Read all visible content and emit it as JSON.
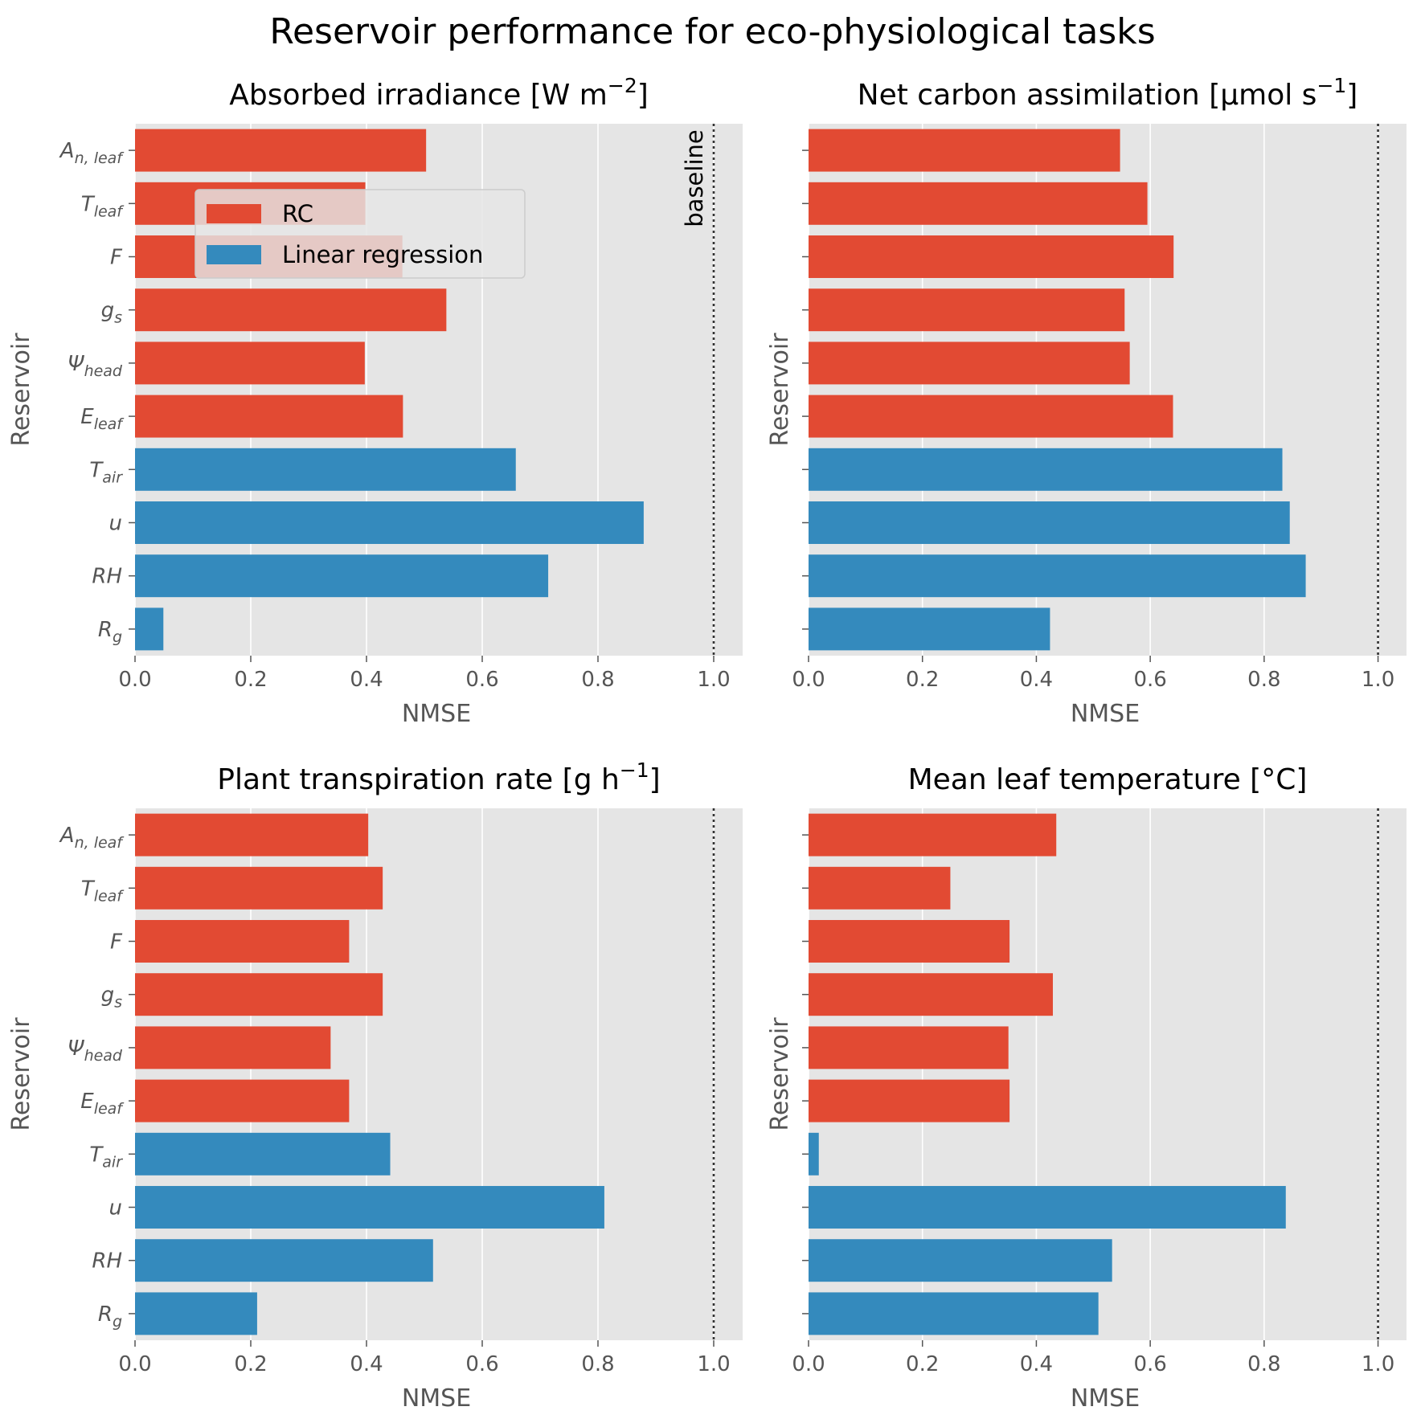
{
  "figure": {
    "title": "Reservoir performance for eco-physiological tasks",
    "colors": {
      "rc": "#E24A33",
      "linear": "#348ABD",
      "panel_bg": "#E5E5E5",
      "grid": "#FFFFFF",
      "tick_text": "#555555",
      "baseline": "#333333"
    }
  },
  "legend": {
    "panel": 0,
    "entries": [
      {
        "label": "RC",
        "color": "#E24A33"
      },
      {
        "label": "Linear regression",
        "color": "#348ABD"
      }
    ]
  },
  "baseline_label": "baseline",
  "chart_data": [
    {
      "type": "bar",
      "orientation": "horizontal",
      "title": "Absorbed irradiance [W m",
      "title_sup": "−2",
      "title_end": "]",
      "xlabel": "NMSE",
      "ylabel": "Reservoir",
      "xlim": [
        0,
        1.05
      ],
      "xticks": [
        "0.0",
        "0.2",
        "0.4",
        "0.6",
        "0.8",
        "1.0"
      ],
      "xtick_values": [
        0,
        0.2,
        0.4,
        0.6,
        0.8,
        1.0
      ],
      "baseline": 1.0,
      "categories": [
        {
          "base": "A",
          "sub": "n, leaf"
        },
        {
          "base": "T",
          "sub": "leaf"
        },
        {
          "base": "F",
          "sub": ""
        },
        {
          "base": "g",
          "sub": "s"
        },
        {
          "base": "Ψ",
          "sub": "head"
        },
        {
          "base": "E",
          "sub": "leaf"
        },
        {
          "base": "T",
          "sub": "air"
        },
        {
          "base": "u",
          "sub": ""
        },
        {
          "base": "RH",
          "sub": ""
        },
        {
          "base": "R",
          "sub": "g"
        }
      ],
      "groups": [
        "RC",
        "RC",
        "RC",
        "RC",
        "RC",
        "RC",
        "Linear regression",
        "Linear regression",
        "Linear regression",
        "Linear regression"
      ],
      "values": [
        0.503,
        0.398,
        0.462,
        0.538,
        0.397,
        0.463,
        0.658,
        0.879,
        0.714,
        0.049
      ],
      "show_ytick_labels": true,
      "show_baseline_label": true
    },
    {
      "type": "bar",
      "orientation": "horizontal",
      "title": "Net carbon assimilation [μmol s",
      "title_sup": "−1",
      "title_end": "]",
      "xlabel": "NMSE",
      "ylabel": "Reservoir",
      "xlim": [
        0,
        1.05
      ],
      "xticks": [
        "0.0",
        "0.2",
        "0.4",
        "0.6",
        "0.8",
        "1.0"
      ],
      "xtick_values": [
        0,
        0.2,
        0.4,
        0.6,
        0.8,
        1.0
      ],
      "baseline": 1.0,
      "categories": [
        {
          "base": "A",
          "sub": "n, leaf"
        },
        {
          "base": "T",
          "sub": "leaf"
        },
        {
          "base": "F",
          "sub": ""
        },
        {
          "base": "g",
          "sub": "s"
        },
        {
          "base": "Ψ",
          "sub": "head"
        },
        {
          "base": "E",
          "sub": "leaf"
        },
        {
          "base": "T",
          "sub": "air"
        },
        {
          "base": "u",
          "sub": ""
        },
        {
          "base": "RH",
          "sub": ""
        },
        {
          "base": "R",
          "sub": "g"
        }
      ],
      "groups": [
        "RC",
        "RC",
        "RC",
        "RC",
        "RC",
        "RC",
        "Linear regression",
        "Linear regression",
        "Linear regression",
        "Linear regression"
      ],
      "values": [
        0.547,
        0.595,
        0.641,
        0.555,
        0.564,
        0.64,
        0.832,
        0.845,
        0.873,
        0.424
      ],
      "show_ytick_labels": false,
      "show_baseline_label": false
    },
    {
      "type": "bar",
      "orientation": "horizontal",
      "title": "Plant transpiration rate [g h",
      "title_sup": "−1",
      "title_end": "]",
      "xlabel": "NMSE",
      "ylabel": "Reservoir",
      "xlim": [
        0,
        1.05
      ],
      "xticks": [
        "0.0",
        "0.2",
        "0.4",
        "0.6",
        "0.8",
        "1.0"
      ],
      "xtick_values": [
        0,
        0.2,
        0.4,
        0.6,
        0.8,
        1.0
      ],
      "baseline": 1.0,
      "categories": [
        {
          "base": "A",
          "sub": "n, leaf"
        },
        {
          "base": "T",
          "sub": "leaf"
        },
        {
          "base": "F",
          "sub": ""
        },
        {
          "base": "g",
          "sub": "s"
        },
        {
          "base": "Ψ",
          "sub": "head"
        },
        {
          "base": "E",
          "sub": "leaf"
        },
        {
          "base": "T",
          "sub": "air"
        },
        {
          "base": "u",
          "sub": ""
        },
        {
          "base": "RH",
          "sub": ""
        },
        {
          "base": "R",
          "sub": "g"
        }
      ],
      "groups": [
        "RC",
        "RC",
        "RC",
        "RC",
        "RC",
        "RC",
        "Linear regression",
        "Linear regression",
        "Linear regression",
        "Linear regression"
      ],
      "values": [
        0.403,
        0.428,
        0.37,
        0.428,
        0.338,
        0.37,
        0.441,
        0.811,
        0.515,
        0.211
      ],
      "show_ytick_labels": true,
      "show_baseline_label": false
    },
    {
      "type": "bar",
      "orientation": "horizontal",
      "title": "Mean leaf temperature [°C]",
      "title_sup": "",
      "title_end": "",
      "xlabel": "NMSE",
      "ylabel": "Reservoir",
      "xlim": [
        0,
        1.05
      ],
      "xticks": [
        "0.0",
        "0.2",
        "0.4",
        "0.6",
        "0.8",
        "1.0"
      ],
      "xtick_values": [
        0,
        0.2,
        0.4,
        0.6,
        0.8,
        1.0
      ],
      "baseline": 1.0,
      "categories": [
        {
          "base": "A",
          "sub": "n, leaf"
        },
        {
          "base": "T",
          "sub": "leaf"
        },
        {
          "base": "F",
          "sub": ""
        },
        {
          "base": "g",
          "sub": "s"
        },
        {
          "base": "Ψ",
          "sub": "head"
        },
        {
          "base": "E",
          "sub": "leaf"
        },
        {
          "base": "T",
          "sub": "air"
        },
        {
          "base": "u",
          "sub": ""
        },
        {
          "base": "RH",
          "sub": ""
        },
        {
          "base": "R",
          "sub": "g"
        }
      ],
      "groups": [
        "RC",
        "RC",
        "RC",
        "RC",
        "RC",
        "RC",
        "Linear regression",
        "Linear regression",
        "Linear regression",
        "Linear regression"
      ],
      "values": [
        0.435,
        0.249,
        0.353,
        0.429,
        0.351,
        0.353,
        0.018,
        0.838,
        0.533,
        0.509
      ],
      "show_ytick_labels": false,
      "show_baseline_label": false
    }
  ]
}
